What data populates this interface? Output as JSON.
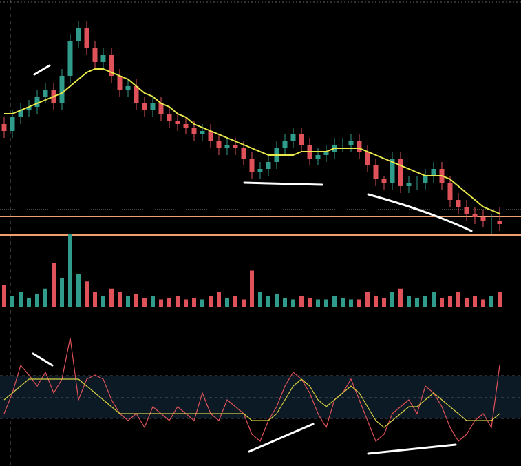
{
  "chart_data": [
    {
      "type": "candlestick",
      "ylim": [
        0,
        69
      ],
      "up_color": "#2f9c8c",
      "down_color": "#e0525a",
      "levels": [
        6.2,
        0.8
      ],
      "level_color": "#f0a070",
      "candles": [
        [
          33,
          35,
          29,
          31
        ],
        [
          31,
          37,
          29,
          35
        ],
        [
          35,
          39,
          33,
          37
        ],
        [
          37,
          40,
          35,
          38
        ],
        [
          38,
          43,
          36,
          41
        ],
        [
          41,
          45,
          39,
          43
        ],
        [
          43,
          45,
          37,
          39
        ],
        [
          39,
          49,
          37,
          47
        ],
        [
          47,
          59,
          45,
          57
        ],
        [
          57,
          63,
          55,
          61
        ],
        [
          61,
          63,
          53,
          55
        ],
        [
          55,
          57,
          49,
          51
        ],
        [
          51,
          55,
          49,
          53
        ],
        [
          53,
          55,
          45,
          47
        ],
        [
          47,
          49,
          41,
          43
        ],
        [
          43,
          46,
          41,
          44
        ],
        [
          44,
          46,
          37,
          39
        ],
        [
          39,
          41,
          35,
          37
        ],
        [
          37,
          41,
          35,
          39
        ],
        [
          39,
          41,
          34,
          36
        ],
        [
          36,
          38,
          32,
          34
        ],
        [
          34,
          36,
          31,
          33
        ],
        [
          33,
          35,
          30,
          32
        ],
        [
          32,
          34,
          28,
          30
        ],
        [
          30,
          33,
          28,
          31
        ],
        [
          31,
          33,
          26,
          28
        ],
        [
          28,
          30,
          24,
          26
        ],
        [
          26,
          29,
          24,
          27
        ],
        [
          27,
          29,
          24,
          26
        ],
        [
          26,
          28,
          21,
          23
        ],
        [
          23,
          25,
          17,
          19
        ],
        [
          19,
          22,
          17,
          20
        ],
        [
          20,
          24,
          18,
          22
        ],
        [
          22,
          28,
          20,
          26
        ],
        [
          26,
          30,
          24,
          28
        ],
        [
          28,
          32,
          26,
          30
        ],
        [
          30,
          32,
          25,
          27
        ],
        [
          27,
          29,
          21,
          23
        ],
        [
          23,
          26,
          21,
          24
        ],
        [
          24,
          27,
          22,
          25
        ],
        [
          25,
          29,
          23,
          27
        ],
        [
          27,
          29,
          25,
          27
        ],
        [
          27,
          30,
          25,
          28
        ],
        [
          28,
          30,
          23,
          25
        ],
        [
          25,
          27,
          19,
          21
        ],
        [
          21,
          23,
          15,
          17
        ],
        [
          17,
          18,
          14,
          16
        ],
        [
          16,
          25,
          14,
          23
        ],
        [
          23,
          25,
          13,
          15
        ],
        [
          15,
          18,
          13,
          16
        ],
        [
          16,
          18,
          14,
          16
        ],
        [
          16,
          20,
          14,
          18
        ],
        [
          18,
          22,
          16,
          20
        ],
        [
          20,
          22,
          14,
          16
        ],
        [
          16,
          18,
          9,
          11
        ],
        [
          11,
          13,
          7,
          9
        ],
        [
          9,
          11,
          5,
          7
        ],
        [
          7,
          9,
          4,
          6
        ],
        [
          6,
          8,
          3,
          5
        ],
        [
          5,
          7,
          1,
          5
        ],
        [
          5,
          9,
          2,
          4
        ]
      ],
      "series": [
        {
          "color": "#e8e84a",
          "values": [
            36,
            36,
            37,
            38,
            39,
            40,
            41,
            42,
            44,
            46,
            48,
            49,
            49,
            48,
            47,
            46,
            44,
            42,
            41,
            39,
            38,
            36,
            35,
            33,
            32,
            31,
            30,
            29,
            28,
            27,
            26,
            25,
            24,
            24,
            24,
            24,
            25,
            25,
            25,
            25,
            26,
            26,
            26,
            26,
            25,
            24,
            23,
            22,
            21,
            20,
            19,
            18,
            18,
            18,
            17,
            15,
            13,
            11,
            9,
            8,
            7
          ]
        }
      ]
    },
    {
      "type": "bar",
      "ylim": [
        0,
        100
      ],
      "values": [
        30,
        15,
        20,
        12,
        18,
        25,
        60,
        40,
        100,
        45,
        35,
        20,
        15,
        25,
        20,
        15,
        18,
        12,
        15,
        10,
        12,
        15,
        10,
        12,
        10,
        15,
        20,
        12,
        15,
        10,
        50,
        20,
        15,
        18,
        12,
        10,
        15,
        12,
        10,
        10,
        15,
        12,
        10,
        10,
        20,
        15,
        12,
        20,
        25,
        15,
        12,
        15,
        20,
        12,
        15,
        20,
        12,
        15,
        10,
        15,
        20
      ]
    },
    {
      "type": "line",
      "ylim": [
        0,
        100
      ],
      "band": [
        26.5,
        57.5
      ],
      "midline": 41.5,
      "band_color": "#0b1a24",
      "series": [
        {
          "color": "#e0525a",
          "values": [
            30,
            45,
            65,
            58,
            50,
            60,
            45,
            55,
            85,
            40,
            55,
            58,
            55,
            40,
            30,
            25,
            30,
            20,
            35,
            30,
            25,
            35,
            30,
            25,
            45,
            30,
            25,
            40,
            35,
            30,
            15,
            10,
            25,
            35,
            50,
            60,
            55,
            45,
            30,
            20,
            40,
            45,
            55,
            40,
            25,
            10,
            15,
            30,
            35,
            40,
            30,
            50,
            45,
            35,
            20,
            10,
            15,
            25,
            30,
            20,
            65
          ]
        },
        {
          "color": "#d8d040",
          "values": [
            40,
            45,
            50,
            55,
            55,
            55,
            55,
            55,
            55,
            55,
            50,
            45,
            40,
            35,
            30,
            30,
            30,
            30,
            30,
            30,
            30,
            30,
            30,
            30,
            30,
            30,
            30,
            30,
            30,
            30,
            25,
            25,
            25,
            30,
            40,
            50,
            55,
            50,
            40,
            35,
            40,
            45,
            50,
            45,
            35,
            25,
            20,
            25,
            30,
            35,
            35,
            40,
            45,
            40,
            35,
            30,
            25,
            25,
            25,
            25,
            30
          ]
        }
      ]
    }
  ]
}
